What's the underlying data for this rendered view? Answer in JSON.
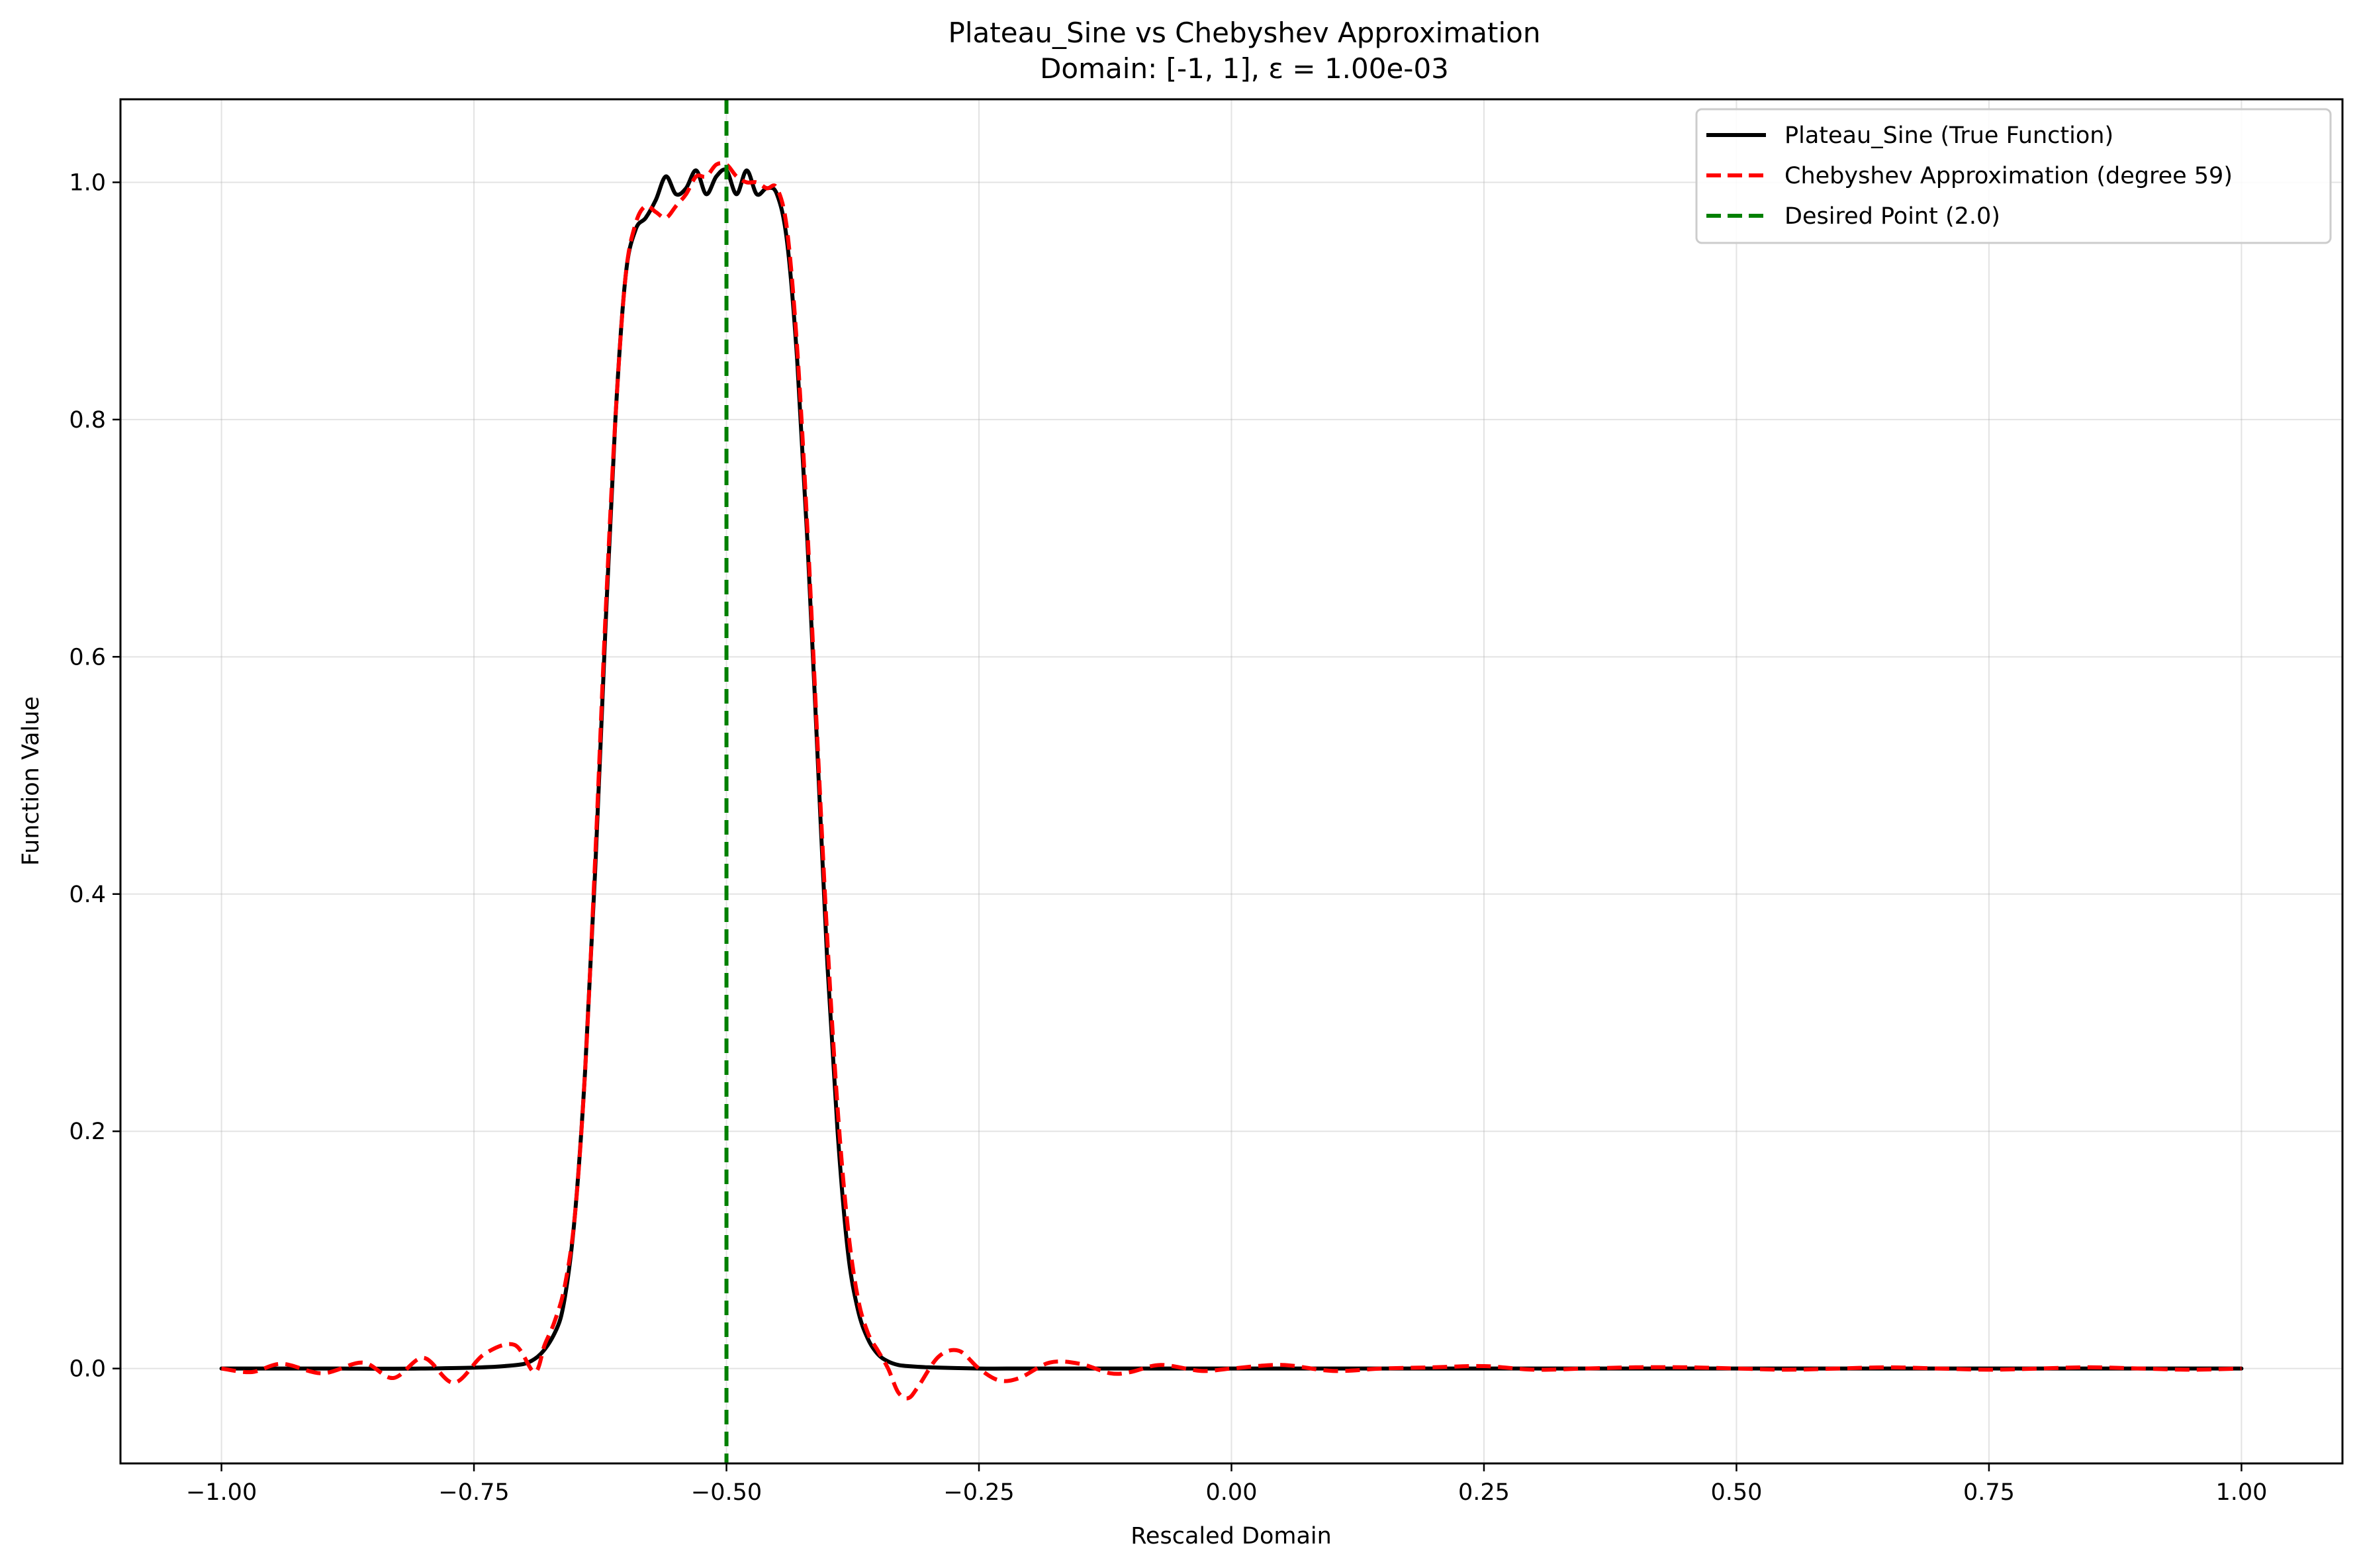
{
  "chart_data": {
    "type": "line",
    "title": "Plateau_Sine vs Chebyshev Approximation",
    "subtitle": "Domain: [-1, 1], ε = 1.00e-03",
    "xlabel": "Rescaled Domain",
    "ylabel": "Function Value",
    "xlim": [
      -1.1,
      1.1
    ],
    "ylim": [
      -0.08,
      1.07
    ],
    "xticks": [
      -1.0,
      -0.75,
      -0.5,
      -0.25,
      0.0,
      0.25,
      0.5,
      0.75,
      1.0
    ],
    "xtick_labels": [
      "−1.00",
      "−0.75",
      "−0.50",
      "−0.25",
      "0.00",
      "0.25",
      "0.50",
      "0.75",
      "1.00"
    ],
    "yticks": [
      0.0,
      0.2,
      0.4,
      0.6,
      0.8,
      1.0
    ],
    "ytick_labels": [
      "0.0",
      "0.2",
      "0.4",
      "0.6",
      "0.8",
      "1.0"
    ],
    "grid": true,
    "legend_position": "top-right",
    "series": [
      {
        "name": "Plateau_Sine (True Function)",
        "color": "#000000",
        "style": "solid",
        "x": [
          -1.0,
          -0.9,
          -0.8,
          -0.72,
          -0.69,
          -0.67,
          -0.66,
          -0.65,
          -0.64,
          -0.63,
          -0.62,
          -0.61,
          -0.6,
          -0.59,
          -0.58,
          -0.57,
          -0.56,
          -0.55,
          -0.54,
          -0.53,
          -0.52,
          -0.51,
          -0.5,
          -0.49,
          -0.48,
          -0.47,
          -0.46,
          -0.45,
          -0.44,
          -0.43,
          -0.42,
          -0.41,
          -0.4,
          -0.39,
          -0.38,
          -0.37,
          -0.36,
          -0.35,
          -0.34,
          -0.33,
          -0.32,
          -0.3,
          -0.25,
          -0.2,
          -0.1,
          0.0,
          0.25,
          0.5,
          0.75,
          1.0
        ],
        "y": [
          0.0,
          0.0,
          0.0,
          0.002,
          0.008,
          0.03,
          0.06,
          0.13,
          0.25,
          0.42,
          0.62,
          0.8,
          0.92,
          0.96,
          0.97,
          0.985,
          1.005,
          0.99,
          0.995,
          1.01,
          0.99,
          1.005,
          1.01,
          0.99,
          1.01,
          0.99,
          0.995,
          0.99,
          0.95,
          0.85,
          0.7,
          0.52,
          0.34,
          0.2,
          0.1,
          0.05,
          0.025,
          0.012,
          0.006,
          0.003,
          0.002,
          0.001,
          0.0,
          0.0,
          0.0,
          0.0,
          0.0,
          0.0,
          0.0,
          0.0
        ]
      },
      {
        "name": "Chebyshev Approximation (degree 59)",
        "color": "#ff0000",
        "style": "dashed",
        "x": [
          -1.0,
          -0.97,
          -0.94,
          -0.9,
          -0.86,
          -0.83,
          -0.8,
          -0.77,
          -0.74,
          -0.71,
          -0.69,
          -0.68,
          -0.67,
          -0.66,
          -0.65,
          -0.64,
          -0.63,
          -0.62,
          -0.61,
          -0.6,
          -0.59,
          -0.58,
          -0.57,
          -0.56,
          -0.55,
          -0.54,
          -0.53,
          -0.52,
          -0.51,
          -0.5,
          -0.49,
          -0.48,
          -0.47,
          -0.46,
          -0.45,
          -0.44,
          -0.43,
          -0.42,
          -0.41,
          -0.4,
          -0.39,
          -0.38,
          -0.37,
          -0.36,
          -0.35,
          -0.34,
          -0.33,
          -0.32,
          -0.31,
          -0.29,
          -0.27,
          -0.25,
          -0.23,
          -0.21,
          -0.18,
          -0.15,
          -0.12,
          -0.1,
          -0.07,
          -0.03,
          0.0,
          0.05,
          0.1,
          0.15,
          0.2,
          0.25,
          0.3,
          0.35,
          0.4,
          0.45,
          0.5,
          0.55,
          0.6,
          0.65,
          0.7,
          0.75,
          0.8,
          0.85,
          0.9,
          0.95,
          1.0
        ],
        "y": [
          0.0,
          -0.003,
          0.004,
          -0.004,
          0.005,
          -0.008,
          0.009,
          -0.012,
          0.012,
          0.02,
          -0.003,
          0.02,
          0.04,
          0.07,
          0.13,
          0.25,
          0.43,
          0.63,
          0.8,
          0.92,
          0.965,
          0.98,
          0.975,
          0.97,
          0.98,
          0.99,
          1.005,
          1.005,
          1.015,
          1.015,
          1.005,
          1.0,
          1.0,
          0.995,
          0.995,
          0.96,
          0.86,
          0.71,
          0.53,
          0.36,
          0.22,
          0.12,
          0.06,
          0.03,
          0.015,
          0.0,
          -0.02,
          -0.025,
          -0.015,
          0.01,
          0.015,
          0.0,
          -0.01,
          -0.008,
          0.005,
          0.004,
          -0.004,
          -0.003,
          0.003,
          -0.002,
          0.0,
          0.003,
          -0.002,
          0.0,
          0.001,
          0.002,
          -0.001,
          0.0,
          0.001,
          0.001,
          0.0,
          -0.001,
          0.0,
          0.001,
          0.0,
          -0.001,
          0.0,
          0.001,
          0.0,
          -0.001,
          0.0
        ]
      },
      {
        "name": "Desired Point (2.0)",
        "color": "#008000",
        "style": "dashed",
        "vertical_line_x": -0.5
      }
    ]
  }
}
